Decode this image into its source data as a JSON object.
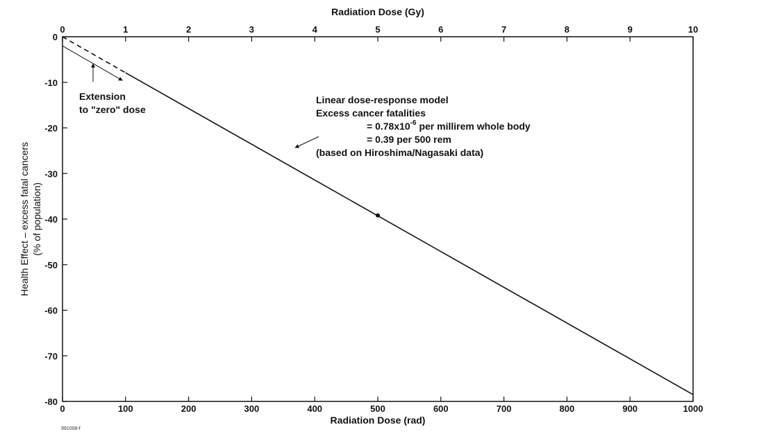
{
  "chart_data": {
    "type": "line",
    "xlabel": "Radiation Dose (rad)",
    "x2label": "Radiation Dose (Gy)",
    "ylabel_line1": "Health Effect – excess fatal cancers",
    "ylabel_line2": "(% of population)",
    "xlim": [
      0,
      1000
    ],
    "x2lim": [
      0,
      10
    ],
    "ylim": [
      -80,
      0
    ],
    "x_ticks": [
      "0",
      "100",
      "200",
      "300",
      "400",
      "500",
      "600",
      "700",
      "800",
      "900",
      "1000"
    ],
    "x2_ticks": [
      "0",
      "1",
      "2",
      "3",
      "4",
      "5",
      "6",
      "7",
      "8",
      "9",
      "10"
    ],
    "y_ticks": [
      "0",
      "-10",
      "-20",
      "-30",
      "-40",
      "-50",
      "-60",
      "-70",
      "-80"
    ],
    "grid": false,
    "series": [
      {
        "style": "solid",
        "color": "#111111",
        "x": [
          100,
          1000
        ],
        "y": [
          -7.9,
          -78.5
        ]
      },
      {
        "style": "dashed",
        "color": "#111111",
        "x": [
          0,
          100
        ],
        "y": [
          0,
          -7.9
        ]
      }
    ],
    "points": [
      {
        "x": 500,
        "y": -39.2
      }
    ],
    "annotations": {
      "extension_line1": "Extension",
      "extension_line2": "to \"zero\" dose",
      "model_line1": "Linear dose-response model",
      "model_line2": "Excess cancer fatalities",
      "model_line3_prefix": "= 0.78x10",
      "model_line3_exp": "-6",
      "model_line3_suffix": " per millirem whole body",
      "model_line4": "= 0.39 per 500 rem",
      "model_line5": "(based on Hiroshima/Nagasaki data)"
    },
    "figure_id": "991008-f"
  }
}
